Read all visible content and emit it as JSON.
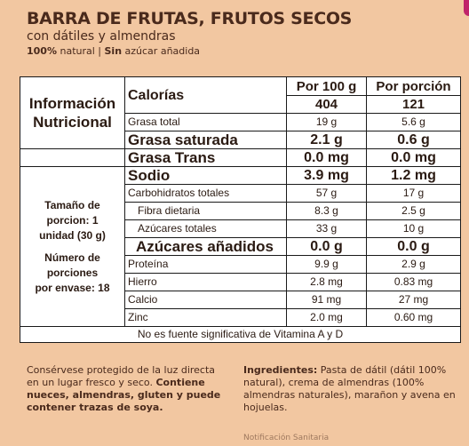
{
  "header": {
    "title": "BARRA DE FRUTAS, FRUTOS SECOS",
    "subtitle": "con dátiles y almendras",
    "tag_bold1": "100%",
    "tag_text1": " natural | ",
    "tag_bold2": "Sin",
    "tag_text2": " azúcar añadida"
  },
  "table": {
    "info_title_1": "Información",
    "info_title_2": "Nutricional",
    "col_100g": "Por 100 g",
    "col_portion": "Por porción",
    "side_serving_1": "Tamaño de",
    "side_serving_2": "porcion:",
    "side_serving_3": " 1",
    "side_serving_4": "unidad (30 g)",
    "side_servings_1": "Número de",
    "side_servings_2": "porciones",
    "side_servings_3": "por envase:",
    "side_servings_4": " 18",
    "rows": [
      {
        "label": "Calorías",
        "per100": "404",
        "portion": "121"
      },
      {
        "label": "Grasa total",
        "per100": "19 g",
        "portion": "5.6 g"
      },
      {
        "label": "Grasa saturada",
        "per100": "2.1 g",
        "portion": "0.6 g"
      },
      {
        "label": "Grasa Trans",
        "per100": "0.0 mg",
        "portion": "0.0 mg"
      },
      {
        "label": "Sodio",
        "per100": "3.9 mg",
        "portion": "1.2 mg"
      },
      {
        "label": "Carbohidratos totales",
        "per100": "57 g",
        "portion": "17 g"
      },
      {
        "label": "Fibra dietaria",
        "per100": "8.3 g",
        "portion": "2.5 g"
      },
      {
        "label": "Azúcares totales",
        "per100": "33 g",
        "portion": "10 g"
      },
      {
        "label": "Azúcares añadidos",
        "per100": "0.0 g",
        "portion": "0.0 g"
      },
      {
        "label": "Proteína",
        "per100": "9.9 g",
        "portion": "2.9 g"
      },
      {
        "label": "Hierro",
        "per100": "2.8 mg",
        "portion": "0.83 mg"
      },
      {
        "label": "Calcio",
        "per100": "91 mg",
        "portion": "27 mg"
      },
      {
        "label": "Zinc",
        "per100": "2.0 mg",
        "portion": "0.60 mg"
      }
    ],
    "footnote": "No es fuente significativa de Vitamina A y D"
  },
  "bottom": {
    "storage": "Consérvese protegido de la luz directa en un lugar fresco y seco. ",
    "allergens": "Contiene nueces, almendras, gluten y puede contener trazas de soya.",
    "ingredients_label": "Ingredientes:",
    "ingredients": " Pasta de dátil (dátil 100% natural), crema de almendras (100% almendras naturales), marañon y avena en hojuelas.",
    "cut_text": "Notificación Sanitaria"
  }
}
